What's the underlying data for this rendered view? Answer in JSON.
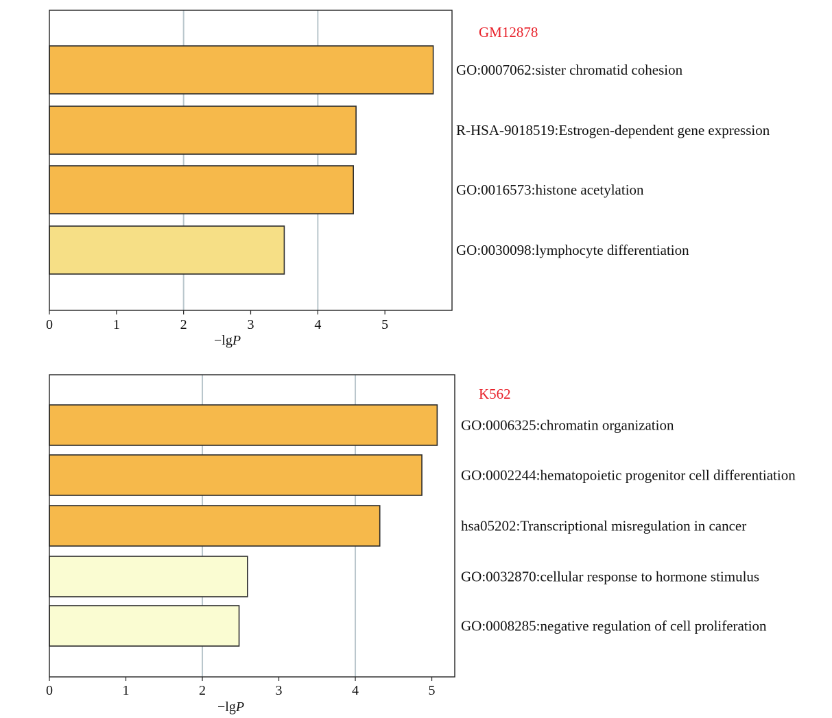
{
  "colors": {
    "high": "#f6b94b",
    "mid": "#f6df86",
    "low": "#fafcd2",
    "bar_stroke": "#2b2b2b",
    "grid": "#b9c6cc",
    "title": "#e8212a"
  },
  "chart_data": [
    {
      "type": "bar",
      "orientation": "horizontal",
      "title": "GM12878",
      "xlabel": "−lg",
      "xlabel_italic": "P",
      "categories": [
        "GO:0007062:sister chromatid cohesion",
        "R-HSA-9018519:Estrogen-dependent gene expression",
        "GO:0016573:histone acetylation",
        "GO:0030098:lymphocyte differentiation"
      ],
      "values": [
        5.72,
        4.57,
        4.53,
        3.5
      ],
      "bar_colors": [
        "high",
        "high",
        "high",
        "mid"
      ],
      "xlim": [
        0,
        6
      ],
      "xticks": [
        0,
        1,
        2,
        3,
        4,
        5
      ],
      "grid_x": [
        2,
        4
      ]
    },
    {
      "type": "bar",
      "orientation": "horizontal",
      "title": "K562",
      "xlabel": "−lg",
      "xlabel_italic": "P",
      "categories": [
        "GO:0006325:chromatin organization",
        "GO:0002244:hematopoietic progenitor cell differentiation",
        "hsa05202:Transcriptional misregulation in cancer",
        "GO:0032870:cellular response to hormone stimulus",
        "GO:0008285:negative regulation of cell proliferation"
      ],
      "values": [
        5.07,
        4.87,
        4.32,
        2.59,
        2.48
      ],
      "bar_colors": [
        "high",
        "high",
        "high",
        "low",
        "low"
      ],
      "xlim": [
        0,
        5.3
      ],
      "xticks": [
        0,
        1,
        2,
        3,
        4,
        5
      ],
      "grid_x": [
        2,
        4
      ]
    }
  ]
}
